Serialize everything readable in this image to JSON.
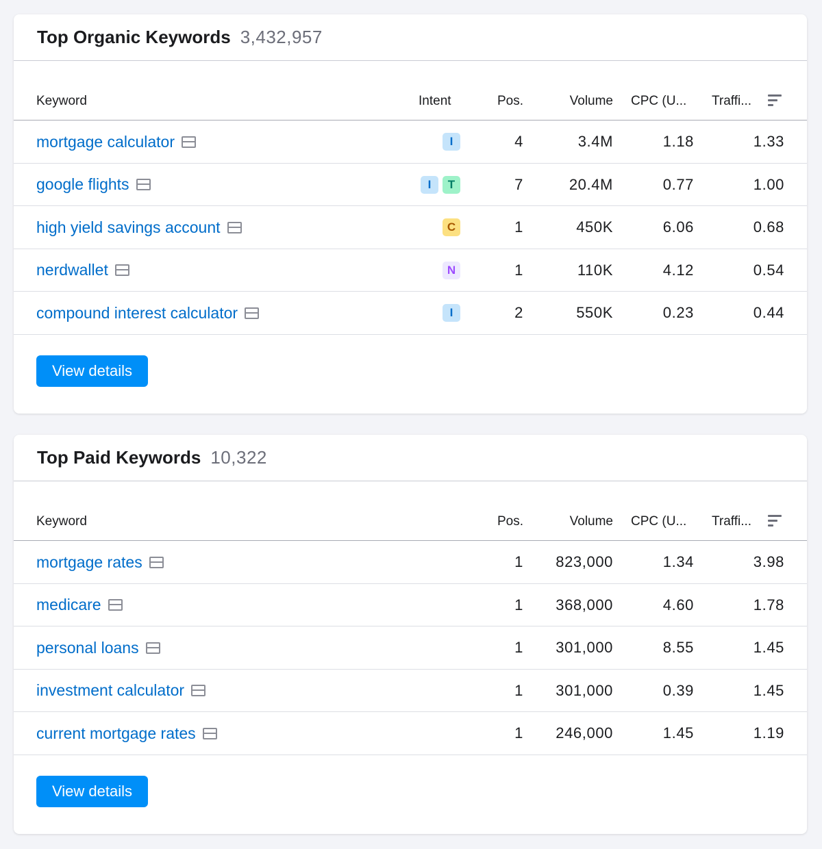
{
  "organic": {
    "title": "Top Organic Keywords",
    "count": "3,432,957",
    "columns": {
      "keyword": "Keyword",
      "intent": "Intent",
      "pos": "Pos.",
      "volume": "Volume",
      "cpc": "CPC (U...",
      "traffic": "Traffi..."
    },
    "rows": [
      {
        "keyword": "mortgage calculator",
        "intents": [
          "I"
        ],
        "pos": "4",
        "volume": "3.4M",
        "cpc": "1.18",
        "traffic": "1.33"
      },
      {
        "keyword": "google flights",
        "intents": [
          "I",
          "T"
        ],
        "pos": "7",
        "volume": "20.4M",
        "cpc": "0.77",
        "traffic": "1.00"
      },
      {
        "keyword": "high yield savings account",
        "intents": [
          "C"
        ],
        "pos": "1",
        "volume": "450K",
        "cpc": "6.06",
        "traffic": "0.68"
      },
      {
        "keyword": "nerdwallet",
        "intents": [
          "N"
        ],
        "pos": "1",
        "volume": "110K",
        "cpc": "4.12",
        "traffic": "0.54"
      },
      {
        "keyword": "compound interest calculator",
        "intents": [
          "I"
        ],
        "pos": "2",
        "volume": "550K",
        "cpc": "0.23",
        "traffic": "0.44"
      }
    ],
    "button_label": "View details"
  },
  "paid": {
    "title": "Top Paid Keywords",
    "count": "10,322",
    "columns": {
      "keyword": "Keyword",
      "pos": "Pos.",
      "volume": "Volume",
      "cpc": "CPC (U...",
      "traffic": "Traffi..."
    },
    "rows": [
      {
        "keyword": "mortgage rates",
        "pos": "1",
        "volume": "823,000",
        "cpc": "1.34",
        "traffic": "3.98"
      },
      {
        "keyword": "medicare",
        "pos": "1",
        "volume": "368,000",
        "cpc": "4.60",
        "traffic": "1.78"
      },
      {
        "keyword": "personal loans",
        "pos": "1",
        "volume": "301,000",
        "cpc": "8.55",
        "traffic": "1.45"
      },
      {
        "keyword": "investment calculator",
        "pos": "1",
        "volume": "301,000",
        "cpc": "0.39",
        "traffic": "1.45"
      },
      {
        "keyword": "current mortgage rates",
        "pos": "1",
        "volume": "246,000",
        "cpc": "1.45",
        "traffic": "1.19"
      }
    ],
    "button_label": "View details"
  },
  "intent_badges": {
    "I": {
      "bg": "#c5e4fb",
      "fg": "#006dca"
    },
    "T": {
      "bg": "#9ef2c9",
      "fg": "#007c65"
    },
    "C": {
      "bg": "#fce081",
      "fg": "#a75800"
    },
    "N": {
      "bg": "#ede8ff",
      "fg": "#9d4bff"
    }
  },
  "icons": {
    "serp": "serp-features-icon",
    "sort": "sort-icon"
  },
  "colors": {
    "link": "#006dca",
    "button": "#008ff8"
  }
}
